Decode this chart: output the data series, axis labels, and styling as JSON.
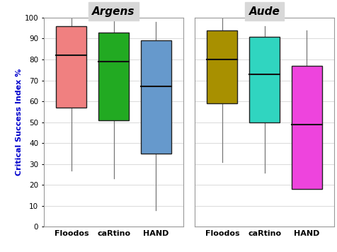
{
  "panels": [
    {
      "title": "Argens",
      "boxes": [
        {
          "label": "Floodos",
          "color": "#F08080",
          "whisker_low": 27,
          "q1": 57,
          "median": 82,
          "q3": 96,
          "whisker_high": 100
        },
        {
          "label": "caRtino",
          "color": "#22AA22",
          "whisker_low": 23,
          "q1": 51,
          "median": 79,
          "q3": 93,
          "whisker_high": 100
        },
        {
          "label": "HAND",
          "color": "#6699CC",
          "whisker_low": 8,
          "q1": 35,
          "median": 67,
          "q3": 89,
          "whisker_high": 98
        }
      ]
    },
    {
      "title": "Aude",
      "boxes": [
        {
          "label": "Floodos",
          "color": "#A89000",
          "whisker_low": 31,
          "q1": 59,
          "median": 80,
          "q3": 94,
          "whisker_high": 100
        },
        {
          "label": "caRtino",
          "color": "#30D5C0",
          "whisker_low": 26,
          "q1": 50,
          "median": 73,
          "q3": 91,
          "whisker_high": 96
        },
        {
          "label": "HAND",
          "color": "#EE44DD",
          "whisker_low": 18,
          "q1": 18,
          "median": 49,
          "q3": 77,
          "whisker_high": 94
        }
      ]
    }
  ],
  "ylabel": "Critical Success Index %",
  "ylabel_color": "#0000CC",
  "ylim": [
    0,
    100
  ],
  "yticks": [
    0,
    10,
    20,
    30,
    40,
    50,
    60,
    70,
    80,
    90,
    100
  ],
  "title_fontsize": 11,
  "box_width": 0.72,
  "median_color": "#111111",
  "whisker_color": "#777777",
  "grid_color": "#dddddd",
  "panel_bg": "#ffffff",
  "title_bg": "#d8d8d8",
  "border_color": "#999999"
}
